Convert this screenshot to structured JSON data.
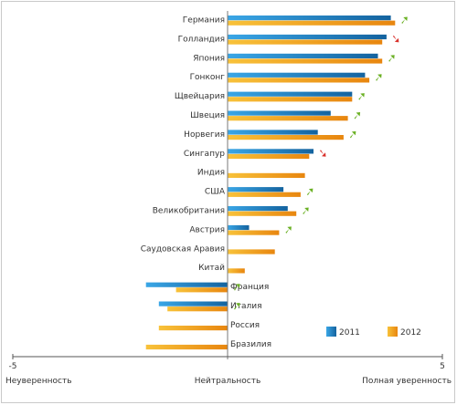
{
  "chart_data": {
    "type": "bar",
    "orientation": "horizontal",
    "categories": [
      "Германия",
      "Голландия",
      "Япония",
      "Гонконг",
      "Щвейцария",
      "Швеция",
      "Норвегия",
      "Сингапур",
      "Индия",
      "США",
      "Великобритания",
      "Австрия",
      "Саудовская Аравия",
      "Китай",
      "Франция",
      "Италия",
      "Россия",
      "Бразилия"
    ],
    "series": [
      {
        "name": "2011",
        "color": "#1f7bc7",
        "values": [
          3.8,
          3.7,
          3.5,
          3.2,
          2.9,
          2.4,
          2.1,
          2.0,
          null,
          1.3,
          1.4,
          0.5,
          null,
          null,
          -1.9,
          -1.6,
          null,
          null
        ]
      },
      {
        "name": "2012",
        "color": "#f0a020",
        "values": [
          3.9,
          3.6,
          3.6,
          3.3,
          2.9,
          2.8,
          2.7,
          1.9,
          1.8,
          1.7,
          1.6,
          1.2,
          1.1,
          0.4,
          -1.2,
          -1.4,
          -1.6,
          -1.9
        ]
      }
    ],
    "trend": [
      "up",
      "down",
      "up",
      "up",
      "up",
      "up",
      "up",
      "down",
      null,
      "up",
      "up",
      "up",
      null,
      null,
      "up",
      "up",
      null,
      null
    ],
    "trend_colors": {
      "up": "#6ab023",
      "down": "#d9302a"
    },
    "xlim": [
      -5,
      5
    ],
    "ticks": [
      {
        "value": -5,
        "label": "-5"
      },
      {
        "value": 5,
        "label": "5"
      }
    ],
    "axis_labels": [
      {
        "value": -5,
        "label": "Неуверенность"
      },
      {
        "value": 0,
        "label": "Нейтральность"
      },
      {
        "value": 5,
        "label": "Полная уверенность"
      }
    ],
    "legend": [
      "2011",
      "2012"
    ],
    "legend_position": "bottom-right",
    "grid": false
  }
}
